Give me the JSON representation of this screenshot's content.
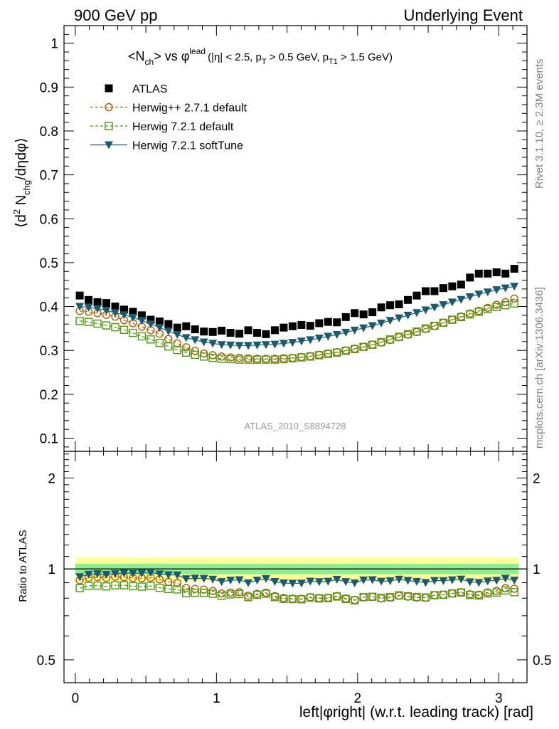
{
  "header": {
    "left_title": "900 GeV pp",
    "right_title": "Underlying Event"
  },
  "side": {
    "rivet": "Rivet 3.1.10, ≥ 2.3M events",
    "mcplots": "mcplots.cern.ch [arXiv:1306.3436]"
  },
  "main_plot": {
    "title_main": "<N",
    "title_ch": "ch",
    "title_vs": "> vs φ",
    "title_lead": "lead",
    "title_cut1": "(|η| < 2.5, p",
    "title_t1": "T",
    "title_cut2": " > 0.5 GeV, p",
    "title_t2": "T1",
    "title_cut3": " > 1.5 GeV)",
    "ylabel_a": "⟨d",
    "ylabel_2": "2",
    "ylabel_b": " N",
    "ylabel_chg": "chg",
    "ylabel_c": "/dηdφ⟩",
    "watermark": "ATLAS_2010_S8894728",
    "yticks": [
      "0.1",
      "0.2",
      "0.3",
      "0.4",
      "0.5",
      "0.6",
      "0.7",
      "0.8",
      "0.9",
      "1"
    ]
  },
  "ratio_plot": {
    "ylabel": "Ratio to ATLAS",
    "yticks": [
      "0.5",
      "1",
      "2"
    ]
  },
  "xaxis": {
    "label": "left|φright| (w.r.t. leading track) [rad]",
    "ticks": [
      "0",
      "1",
      "2",
      "3"
    ]
  },
  "colors": {
    "atlas": "#000000",
    "herwigpp": "#b35a00",
    "herwig721": "#4a9a0a",
    "softtune": "#1b5a6e",
    "band_outer": "#ffff99",
    "band_inner": "#90ee90"
  },
  "chart_data": {
    "type": "scatter",
    "x": [
      0.0314,
      0.0942,
      0.1571,
      0.2199,
      0.2827,
      0.3456,
      0.4084,
      0.4712,
      0.5341,
      0.5969,
      0.6597,
      0.7226,
      0.7854,
      0.8482,
      0.9111,
      0.9739,
      1.0367,
      1.0996,
      1.1624,
      1.2252,
      1.2881,
      1.3509,
      1.4137,
      1.4765,
      1.5394,
      1.6022,
      1.665,
      1.7279,
      1.7907,
      1.8535,
      1.9164,
      1.9792,
      2.042,
      2.1049,
      2.1677,
      2.2305,
      2.2934,
      2.3562,
      2.419,
      2.4819,
      2.5447,
      2.6075,
      2.6704,
      2.7332,
      2.796,
      2.8588,
      2.9217,
      2.9845,
      3.0473,
      3.1102
    ],
    "xlim": [
      -0.08,
      3.2
    ],
    "series": [
      {
        "name": "ATLAS",
        "marker": "filled-square",
        "values": [
          0.425,
          0.415,
          0.41,
          0.408,
          0.4,
          0.393,
          0.388,
          0.38,
          0.37,
          0.366,
          0.36,
          0.352,
          0.355,
          0.348,
          0.343,
          0.342,
          0.345,
          0.34,
          0.338,
          0.346,
          0.34,
          0.337,
          0.346,
          0.352,
          0.355,
          0.358,
          0.356,
          0.362,
          0.365,
          0.364,
          0.376,
          0.385,
          0.382,
          0.387,
          0.398,
          0.403,
          0.405,
          0.415,
          0.425,
          0.435,
          0.435,
          0.442,
          0.446,
          0.45,
          0.466,
          0.475,
          0.475,
          0.478,
          0.475,
          0.486
        ]
      },
      {
        "name": "Herwig++ 2.7.1 default",
        "marker": "open-circle",
        "line": "dashed",
        "values": [
          0.39,
          0.388,
          0.385,
          0.381,
          0.377,
          0.369,
          0.362,
          0.354,
          0.346,
          0.338,
          0.326,
          0.316,
          0.307,
          0.299,
          0.293,
          0.289,
          0.286,
          0.284,
          0.283,
          0.282,
          0.281,
          0.281,
          0.281,
          0.282,
          0.283,
          0.285,
          0.287,
          0.29,
          0.293,
          0.296,
          0.3,
          0.304,
          0.308,
          0.313,
          0.318,
          0.324,
          0.33,
          0.336,
          0.342,
          0.349,
          0.356,
          0.363,
          0.37,
          0.377,
          0.384,
          0.39,
          0.397,
          0.404,
          0.41,
          0.418
        ]
      },
      {
        "name": "Herwig 7.2.1 default",
        "marker": "open-square",
        "line": "dashed",
        "values": [
          0.367,
          0.365,
          0.361,
          0.357,
          0.353,
          0.347,
          0.34,
          0.332,
          0.325,
          0.317,
          0.309,
          0.301,
          0.295,
          0.29,
          0.286,
          0.283,
          0.281,
          0.28,
          0.279,
          0.279,
          0.279,
          0.279,
          0.279,
          0.28,
          0.282,
          0.284,
          0.286,
          0.289,
          0.292,
          0.295,
          0.299,
          0.303,
          0.308,
          0.313,
          0.319,
          0.325,
          0.331,
          0.337,
          0.343,
          0.35,
          0.356,
          0.363,
          0.37,
          0.376,
          0.382,
          0.388,
          0.394,
          0.399,
          0.403,
          0.407
        ]
      },
      {
        "name": "Herwig 7.2.1 softTune",
        "marker": "filled-triangle-down",
        "line": "solid",
        "values": [
          0.4,
          0.398,
          0.395,
          0.391,
          0.386,
          0.381,
          0.375,
          0.368,
          0.36,
          0.352,
          0.344,
          0.336,
          0.329,
          0.324,
          0.319,
          0.316,
          0.313,
          0.312,
          0.311,
          0.311,
          0.312,
          0.313,
          0.314,
          0.316,
          0.318,
          0.321,
          0.324,
          0.328,
          0.332,
          0.336,
          0.341,
          0.346,
          0.351,
          0.356,
          0.362,
          0.368,
          0.374,
          0.38,
          0.386,
          0.392,
          0.398,
          0.404,
          0.41,
          0.416,
          0.422,
          0.428,
          0.433,
          0.438,
          0.442,
          0.446
        ]
      }
    ],
    "main_ylim": [
      0.07,
      1.04
    ],
    "ratio_ylim": [
      0.42,
      2.45
    ],
    "ratio_yscale": "log",
    "ratio_band_outer": [
      0.91,
      1.09
    ],
    "ratio_band_inner": [
      0.96,
      1.04
    ],
    "legend_position": "top-left"
  }
}
